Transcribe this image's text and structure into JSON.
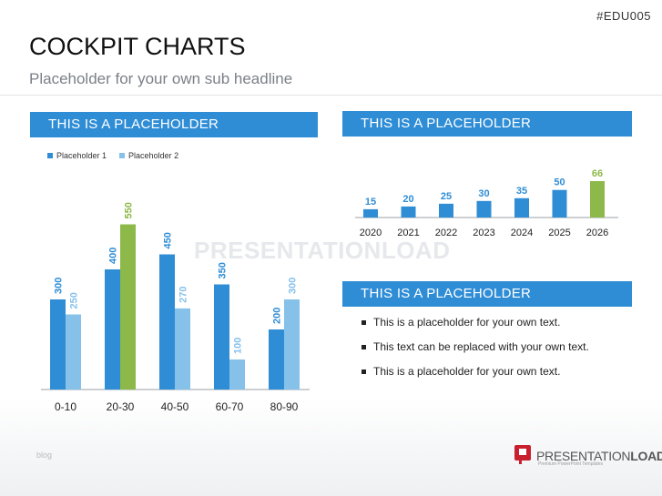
{
  "code": "#EDU005",
  "title": "COCKPIT CHARTS",
  "subtitle": "Placeholder for your own sub headline",
  "panels": {
    "left_header": "THIS IS A PLACEHOLDER",
    "right_top_header": "THIS IS A PLACEHOLDER",
    "right_bottom_header": "THIS IS A PLACEHOLDER"
  },
  "bullets": [
    "This is a placeholder for your own text.",
    "This text can be replaced with your own text.",
    "This is a placeholder for your own text."
  ],
  "watermark": "PRESENTATIONLOAD",
  "footer_left": "blog",
  "logo": {
    "brand_a": "PRESENTATION",
    "brand_b": "LOAD",
    "reg": "®",
    "tagline": "Premium PowerPoint Templates"
  },
  "colors": {
    "dark_blue": "#2f8dd6",
    "light_blue": "#86c1ea",
    "green": "#8db84a",
    "header": "#2f8dd6",
    "logo_red": "#c8202f"
  },
  "chart_data": [
    {
      "type": "bar",
      "categories": [
        "0-10",
        "20-30",
        "40-50",
        "60-70",
        "80-90"
      ],
      "series": [
        {
          "name": "Placeholder 1",
          "values": [
            300,
            400,
            450,
            350,
            200
          ]
        },
        {
          "name": "Placeholder 2",
          "values": [
            250,
            550,
            270,
            100,
            300
          ]
        }
      ],
      "highlight": {
        "series": 1,
        "index": 1,
        "color": "#8db84a"
      },
      "ylim": [
        0,
        600
      ],
      "legend": "top-left",
      "data_labels": "rotated above bars",
      "grid": false
    },
    {
      "type": "bar",
      "categories": [
        "2020",
        "2021",
        "2022",
        "2023",
        "2024",
        "2025",
        "2026"
      ],
      "values": [
        15,
        20,
        25,
        30,
        35,
        50,
        66
      ],
      "highlight": {
        "index": 6,
        "color": "#8db84a"
      },
      "ylim": [
        0,
        66
      ],
      "data_labels": "above bars",
      "grid": false
    }
  ]
}
